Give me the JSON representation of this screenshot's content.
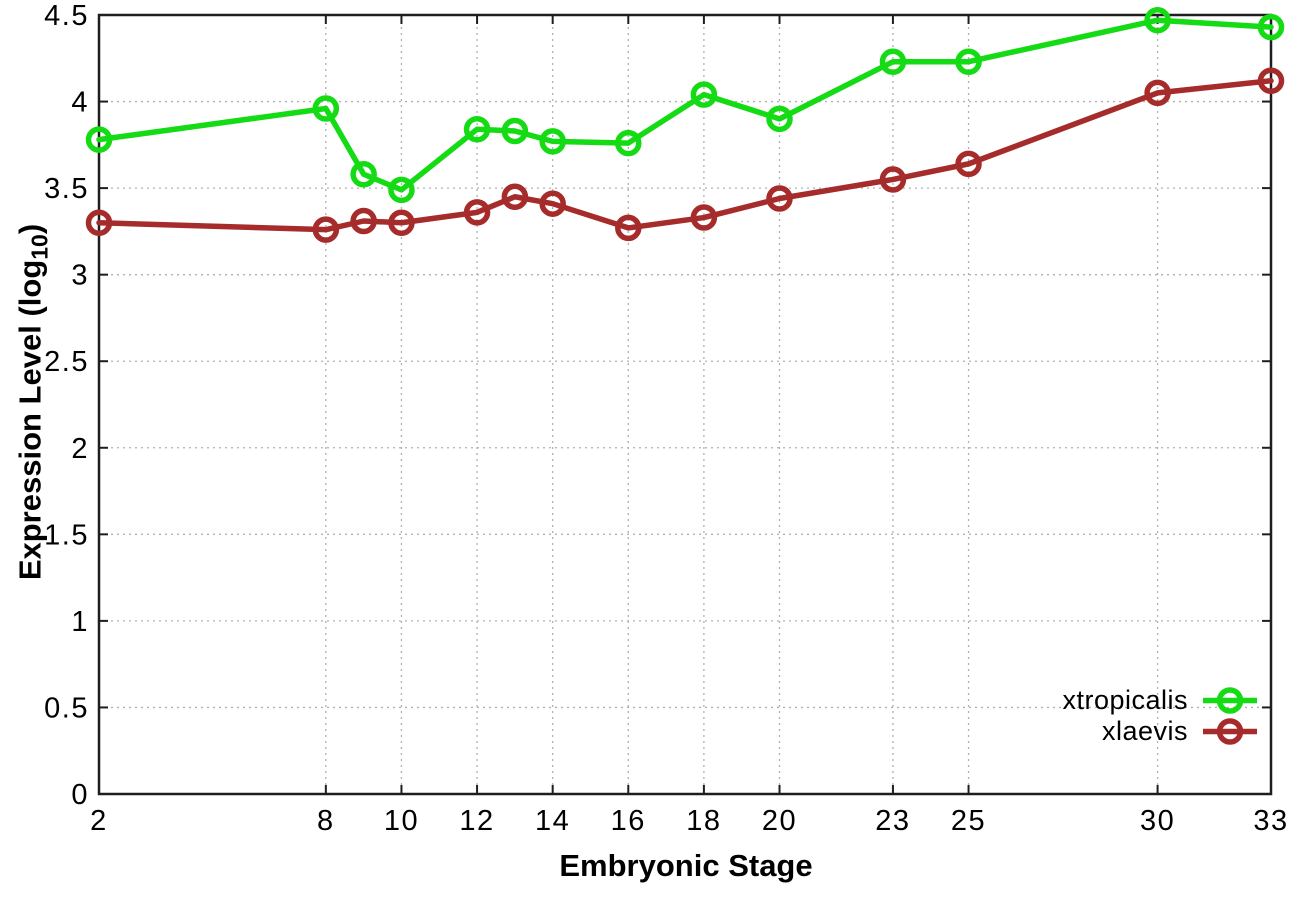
{
  "figure": {
    "background": "#ffffff",
    "border_color": "#1e1e1e",
    "grid_color": "#b0b0b0",
    "text_color": "#000000"
  },
  "chart_data": {
    "type": "line",
    "title": "",
    "xlabel": "Embryonic Stage",
    "ylabel_prefix": "Expression Level (log",
    "ylabel_sub": "10",
    "ylabel_suffix": ")",
    "xlim": [
      2,
      33
    ],
    "ylim": [
      0,
      4.5
    ],
    "grid": true,
    "legend_position": "bottom-right-inside",
    "x_ticks": [
      2,
      8,
      10,
      12,
      14,
      16,
      18,
      20,
      23,
      25,
      30,
      33
    ],
    "x_tick_labels": [
      "2",
      "8",
      "10",
      "12",
      "14",
      "16",
      "18",
      "20",
      "23",
      "25",
      "30",
      "33"
    ],
    "y_ticks": [
      0,
      0.5,
      1,
      1.5,
      2,
      2.5,
      3,
      3.5,
      4,
      4.5
    ],
    "y_tick_labels": [
      "0",
      "0.5",
      "1",
      "1.5",
      "2",
      "2.5",
      "3",
      "3.5",
      "4",
      "4.5"
    ],
    "x": [
      2,
      8,
      9,
      10,
      12,
      13,
      14,
      16,
      18,
      20,
      23,
      25,
      30,
      33
    ],
    "series": [
      {
        "name": "xtropicalis",
        "color": "#15db15",
        "marker": "open-circle",
        "values": [
          3.78,
          3.96,
          3.58,
          3.49,
          3.84,
          3.83,
          3.77,
          3.76,
          4.04,
          3.9,
          4.23,
          4.23,
          4.47,
          4.43
        ]
      },
      {
        "name": "xlaevis",
        "color": "#a62b2b",
        "marker": "open-circle",
        "values": [
          3.3,
          3.26,
          3.31,
          3.3,
          3.36,
          3.45,
          3.41,
          3.27,
          3.33,
          3.44,
          3.55,
          3.64,
          4.05,
          4.12
        ]
      }
    ]
  }
}
